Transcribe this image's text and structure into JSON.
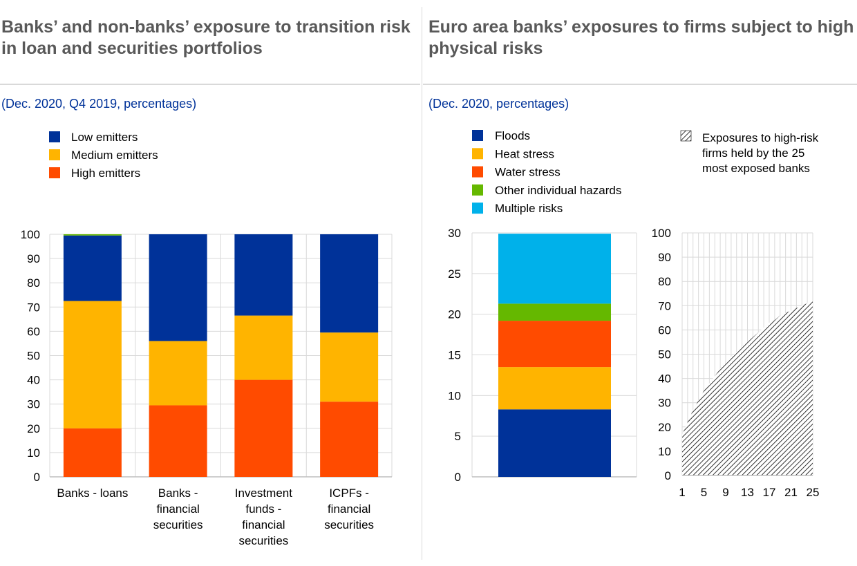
{
  "panels": [
    {
      "title": "Banks’ and non-banks’ exposure to transition risk in loan and securities portfolios",
      "subtitle": "(Dec. 2020, Q4 2019, percentages)"
    },
    {
      "title": "Euro area banks’ exposures to firms subject to high physical risks",
      "subtitle": "(Dec. 2020, percentages)"
    }
  ],
  "chart_data": [
    {
      "type": "bar",
      "stacked": true,
      "categories": [
        [
          "Banks - loans"
        ],
        [
          "Banks -",
          "financial",
          "securities"
        ],
        [
          "Investment",
          "funds -",
          "financial",
          "securities"
        ],
        [
          "ICPFs -",
          "financial",
          "securities"
        ]
      ],
      "series": [
        {
          "name": "High emitters",
          "color": "#ff4b00",
          "values": [
            20,
            29.5,
            40,
            31
          ]
        },
        {
          "name": "Medium emitters",
          "color": "#ffb400",
          "values": [
            52.5,
            26.5,
            26.5,
            28.5
          ]
        },
        {
          "name": "Low emitters",
          "color": "#003299",
          "values": [
            27,
            44,
            33.5,
            40.5
          ]
        },
        {
          "name": "",
          "color": "#65b800",
          "values": [
            0.5,
            0,
            0,
            0
          ]
        }
      ],
      "legend": [
        "Low emitters",
        "Medium emitters",
        "High emitters"
      ],
      "ylim": [
        0,
        100
      ],
      "yticks": [
        0,
        10,
        20,
        30,
        40,
        50,
        60,
        70,
        80,
        90,
        100
      ],
      "grid": true,
      "legend_position": "top-left"
    },
    {
      "type": "bar",
      "stacked": true,
      "categories": [
        ""
      ],
      "series": [
        {
          "name": "Floods",
          "color": "#003299",
          "values": [
            8.3
          ]
        },
        {
          "name": "Heat stress",
          "color": "#ffb400",
          "values": [
            5.2
          ]
        },
        {
          "name": "Water stress",
          "color": "#ff4b00",
          "values": [
            5.7
          ]
        },
        {
          "name": "Other individual hazards",
          "color": "#65b800",
          "values": [
            2.1
          ]
        },
        {
          "name": "Multiple risks",
          "color": "#00b1ea",
          "values": [
            8.6
          ]
        }
      ],
      "ylim": [
        0,
        30
      ],
      "yticks": [
        0,
        5,
        10,
        15,
        20,
        25,
        30
      ],
      "grid": true,
      "legend_position": "top-left"
    },
    {
      "type": "area",
      "series": [
        {
          "name": "Exposures to high-risk firms held by the 25 most exposed banks",
          "legend_lines": [
            "Exposures to high-risk",
            "firms held by the 25",
            "most exposed banks"
          ],
          "x": [
            1,
            2,
            3,
            4,
            5,
            6,
            7,
            8,
            9,
            10,
            11,
            12,
            13,
            14,
            15,
            16,
            17,
            18,
            19,
            20,
            21,
            22,
            23,
            24,
            25
          ],
          "values": [
            17,
            22,
            27,
            31,
            35,
            38,
            41,
            44,
            46,
            49,
            51,
            53,
            55,
            57,
            59,
            61,
            63,
            64,
            66,
            67,
            68,
            69,
            70,
            71,
            72
          ]
        }
      ],
      "xticks": [
        1,
        5,
        9,
        13,
        17,
        21,
        25
      ],
      "ylim": [
        0,
        100
      ],
      "yticks": [
        0,
        10,
        20,
        30,
        40,
        50,
        60,
        70,
        80,
        90,
        100
      ],
      "grid": true,
      "legend_position": "top-right"
    }
  ]
}
